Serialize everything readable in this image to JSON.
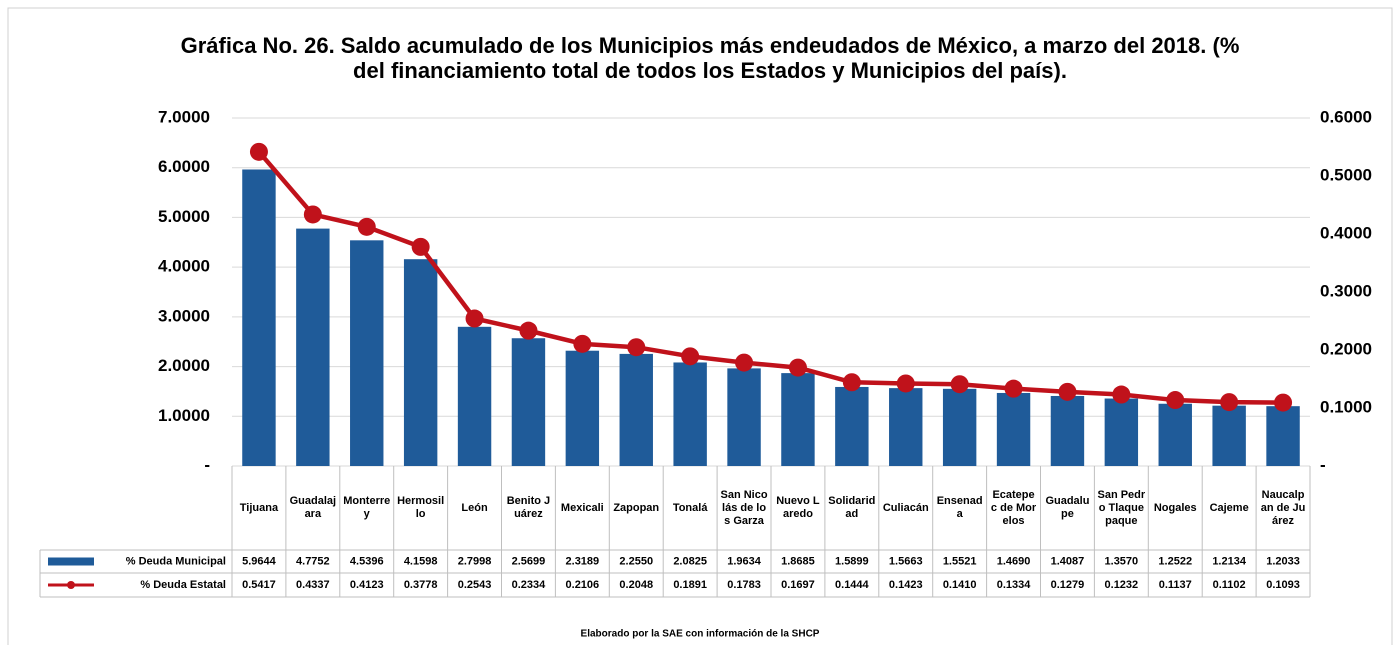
{
  "chart_data": {
    "type": "bar",
    "title": "Gráfica No. 26. Saldo acumulado de los Municipios más endeudados de México, a marzo del 2018. (% del financiamiento total de todos los Estados y Municipios del país).",
    "footer": "Elaborado por la SAE con información de la SHCP",
    "categories": [
      "Tijuana",
      "Guadalajara",
      "Monterrey",
      "Hermosillo",
      "León",
      "Benito Juárez",
      "Mexicali",
      "Zapopan",
      "Tonalá",
      "San Nicolás de los Garza",
      "Nuevo Laredo",
      "Solidaridad",
      "Culiacán",
      "Ensenada",
      "Ecatepec de Morelos",
      "Guadalupe",
      "San Pedro Tlaquepaque",
      "Nogales",
      "Cajeme",
      "Naucalpan de Juárez"
    ],
    "series": [
      {
        "name": "% Deuda Municipal",
        "type": "bar",
        "color": "#1f5b99",
        "values": [
          5.9644,
          4.7752,
          4.5396,
          4.1598,
          2.7998,
          2.5699,
          2.3189,
          2.255,
          2.0825,
          1.9634,
          1.8685,
          1.5899,
          1.5663,
          1.5521,
          1.469,
          1.4087,
          1.357,
          1.2522,
          1.2134,
          1.2033
        ],
        "value_labels": [
          "5.9644",
          "4.7752",
          "4.5396",
          "4.1598",
          "2.7998",
          "2.5699",
          "2.3189",
          "2.2550",
          "2.0825",
          "1.9634",
          "1.8685",
          "1.5899",
          "1.5663",
          "1.5521",
          "1.4690",
          "1.4087",
          "1.3570",
          "1.2522",
          "1.2134",
          "1.2033"
        ]
      },
      {
        "name": "% Deuda Estatal",
        "type": "line",
        "axis": "y2",
        "color": "#c0121b",
        "values": [
          0.5417,
          0.4337,
          0.4123,
          0.3778,
          0.2543,
          0.2334,
          0.2106,
          0.2048,
          0.1891,
          0.1783,
          0.1697,
          0.1444,
          0.1423,
          0.141,
          0.1334,
          0.1279,
          0.1232,
          0.1137,
          0.1102,
          0.1093
        ],
        "value_labels": [
          "0.5417",
          "0.4337",
          "0.4123",
          "0.3778",
          "0.2543",
          "0.2334",
          "0.2106",
          "0.2048",
          "0.1891",
          "0.1783",
          "0.1697",
          "0.1444",
          "0.1423",
          "0.1410",
          "0.1334",
          "0.1279",
          "0.1232",
          "0.1137",
          "0.1102",
          "0.1093"
        ]
      }
    ],
    "ylim": [
      0,
      7
    ],
    "yticks": [
      {
        "value": 0,
        "label": "-"
      },
      {
        "value": 1,
        "label": "1.0000"
      },
      {
        "value": 2,
        "label": "2.0000"
      },
      {
        "value": 3,
        "label": "3.0000"
      },
      {
        "value": 4,
        "label": "4.0000"
      },
      {
        "value": 5,
        "label": "5.0000"
      },
      {
        "value": 6,
        "label": "6.0000"
      },
      {
        "value": 7,
        "label": "7.0000"
      }
    ],
    "y2lim": [
      0,
      0.6
    ],
    "y2ticks": [
      {
        "value": 0,
        "label": "-"
      },
      {
        "value": 0.1,
        "label": "0.1000"
      },
      {
        "value": 0.2,
        "label": "0.2000"
      },
      {
        "value": 0.3,
        "label": "0.3000"
      },
      {
        "value": 0.4,
        "label": "0.4000"
      },
      {
        "value": 0.5,
        "label": "0.5000"
      },
      {
        "value": 0.6,
        "label": "0.6000"
      }
    ],
    "grid": true
  }
}
